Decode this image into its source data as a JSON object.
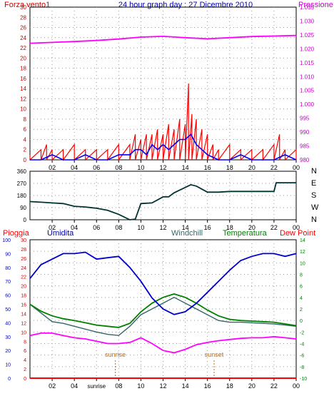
{
  "header": {
    "left_label": "Forza vento1",
    "title": "24 hour graph day : 27 Dicembre 2010",
    "right_label": "Pressione"
  },
  "colors": {
    "wind_gust": "#ff0000",
    "wind_avg": "#0000ff",
    "pressure": "#ff00ff",
    "direction": "#003333",
    "rain": "#ff0000",
    "humidity": "#0000cc",
    "windchill": "#336666",
    "temperature": "#008000",
    "dewpoint": "#ff00ff",
    "axis_left": "#cc0000",
    "axis_right": "#cc00cc",
    "axis_temp": "#008000",
    "grid": "#999999",
    "annotation": "#cc6600"
  },
  "chart_data": [
    {
      "type": "line",
      "x_ticks": [
        "02",
        "04",
        "06",
        "08",
        "10",
        "12",
        "14",
        "16",
        "18",
        "20",
        "22",
        "00"
      ],
      "y_left": {
        "label": "Forza vento1",
        "ticks": [
          "0",
          "2",
          "4",
          "6",
          "8",
          "10",
          "12",
          "14",
          "16",
          "18",
          "20",
          "22",
          "24",
          "26",
          "28",
          "30"
        ],
        "range": [
          0,
          30
        ]
      },
      "y_right": {
        "label": "Pressione",
        "ticks": [
          "980",
          "985",
          "990",
          "995",
          "1.000",
          "1.005",
          "1.010",
          "1.015",
          "1.020",
          "1.025",
          "1.030",
          "1.035"
        ],
        "range": [
          980,
          1035
        ]
      },
      "series": [
        {
          "name": "Forza vento1",
          "axis": "left",
          "x": [
            0,
            1,
            1.5,
            2,
            3,
            4,
            5,
            6,
            7,
            8,
            9,
            9.5,
            10,
            10.5,
            11,
            11.5,
            12,
            12.5,
            13,
            13.5,
            14,
            14.3,
            14.6,
            15,
            15.5,
            16,
            16.5,
            17,
            18,
            19,
            20,
            21,
            22,
            22.5,
            23,
            24
          ],
          "y": [
            1,
            2,
            3,
            2,
            2,
            3,
            2,
            2,
            2,
            3,
            3,
            5,
            4,
            5,
            5,
            6,
            5,
            7,
            6,
            8,
            7,
            15,
            9,
            8,
            6,
            5,
            3,
            2,
            3,
            2,
            2,
            2,
            3,
            5,
            2,
            2
          ]
        },
        {
          "x": [
            0,
            1,
            2,
            3,
            4,
            5,
            6,
            7,
            8,
            9,
            9.5,
            10,
            10.5,
            11,
            11.5,
            12,
            12.5,
            13,
            13.5,
            14,
            14.5,
            15,
            15.5,
            16,
            17,
            18,
            19,
            20,
            21,
            22,
            23,
            24
          ],
          "y": [
            0,
            0,
            1,
            0,
            0,
            1,
            0,
            0,
            1,
            1,
            2,
            2,
            1,
            3,
            2,
            3,
            2,
            3,
            4,
            4,
            5,
            3,
            2,
            1,
            0,
            0,
            1,
            0,
            0,
            0,
            1,
            0
          ]
        },
        {
          "name": "Pressione",
          "axis": "right",
          "x": [
            0,
            2,
            4,
            6,
            8,
            10,
            12,
            14,
            16,
            18,
            20,
            22,
            24
          ],
          "y": [
            1022,
            1022.3,
            1022.6,
            1023,
            1023.5,
            1024.2,
            1024.5,
            1024,
            1023.6,
            1024,
            1024.4,
            1024.6,
            1024.8
          ]
        }
      ]
    },
    {
      "type": "line",
      "x_ticks": [
        "02",
        "04",
        "06",
        "08",
        "10",
        "12",
        "14",
        "16",
        "18",
        "20",
        "22",
        "00"
      ],
      "y_left": {
        "ticks": [
          "0",
          "90",
          "180",
          "270",
          "360"
        ],
        "range": [
          0,
          360
        ]
      },
      "y_right": {
        "ticks": [
          "N",
          "W",
          "S",
          "E",
          "N"
        ]
      },
      "series": [
        {
          "x": [
            0,
            1,
            2,
            3,
            4,
            5,
            6,
            7,
            8,
            9,
            9.5,
            10,
            11,
            12,
            12.5,
            13,
            13.5,
            14,
            14.5,
            15,
            16,
            17,
            18,
            19,
            20,
            21,
            22,
            22.2,
            23,
            24
          ],
          "y": [
            135,
            130,
            125,
            120,
            100,
            95,
            85,
            70,
            40,
            0,
            5,
            120,
            125,
            170,
            170,
            200,
            220,
            240,
            260,
            250,
            205,
            205,
            210,
            210,
            210,
            210,
            210,
            275,
            275,
            275
          ]
        }
      ]
    },
    {
      "type": "line",
      "x_ticks": [
        "02",
        "04",
        "sunrise",
        "08",
        "10",
        "12",
        "14",
        "16",
        "18",
        "20",
        "22",
        "00"
      ],
      "header_labels": {
        "rain": "Pioggia",
        "humidity": "Umidita",
        "windchill": "Windchill",
        "temperature": "Temperatura",
        "dewpoint": "Dew Point"
      },
      "y_left_humidity": {
        "ticks": [
          "0",
          "10",
          "20",
          "30",
          "40",
          "50",
          "60",
          "70",
          "80",
          "90",
          "100"
        ],
        "range": [
          0,
          100
        ]
      },
      "y_left_rain": {
        "ticks": [
          "0",
          "2",
          "4",
          "6",
          "8",
          "10",
          "12",
          "14",
          "16",
          "18",
          "20",
          "22",
          "24",
          "26",
          "28",
          "30"
        ],
        "range": [
          0,
          30
        ]
      },
      "y_right_temp": {
        "ticks": [
          "-10",
          "-8",
          "-6",
          "-4",
          "-2",
          "0",
          "2",
          "4",
          "6",
          "8",
          "10",
          "12",
          "14"
        ],
        "range": [
          -10,
          14
        ]
      },
      "annotations": [
        {
          "text": "sunrise",
          "x": 7.7
        },
        {
          "text": "sunset",
          "x": 16.6
        }
      ],
      "series": [
        {
          "name": "Umidita",
          "axis": "humidity",
          "x": [
            0,
            1,
            2,
            3,
            4,
            5,
            6,
            7,
            8,
            9,
            10,
            11,
            12,
            13,
            14,
            15,
            16,
            17,
            18,
            19,
            20,
            21,
            22,
            23,
            24
          ],
          "y": [
            72,
            82,
            86,
            90,
            90,
            91,
            86,
            87,
            88,
            80,
            70,
            58,
            50,
            46,
            48,
            54,
            62,
            70,
            78,
            85,
            88,
            90,
            90,
            88,
            90
          ]
        },
        {
          "name": "Pioggia",
          "axis": "rain",
          "x": [
            0,
            24
          ],
          "y": [
            0,
            0
          ]
        },
        {
          "name": "Windchill",
          "axis": "temp",
          "x": [
            0,
            1,
            2,
            3,
            4,
            5,
            6,
            7,
            8,
            9,
            10,
            11,
            12,
            13,
            14,
            15,
            16,
            17,
            18,
            19,
            20,
            21,
            22,
            23,
            24
          ],
          "y": [
            2.8,
            1.3,
            -0.2,
            -0.5,
            -1,
            -1.5,
            -2,
            -2.4,
            -2.6,
            -1,
            1,
            2,
            3,
            4,
            3,
            2,
            1,
            0,
            -0.3,
            -0.3,
            -0.4,
            -0.5,
            -0.6,
            -0.8,
            -1
          ]
        },
        {
          "name": "Temperatura",
          "axis": "temp",
          "x": [
            0,
            1,
            2,
            3,
            4,
            5,
            6,
            7,
            8,
            9,
            10,
            11,
            12,
            13,
            14,
            15,
            16,
            17,
            18,
            19,
            20,
            21,
            22,
            23,
            24
          ],
          "y": [
            2.8,
            1.6,
            0.8,
            0.3,
            0,
            -0.4,
            -0.8,
            -1,
            -1.2,
            -0.5,
            1.5,
            3,
            4,
            4.6,
            4,
            3,
            1.8,
            0.8,
            0.2,
            0,
            -0.1,
            -0.2,
            -0.3,
            -0.6,
            -0.9
          ]
        },
        {
          "name": "Dew Point",
          "axis": "temp",
          "x": [
            0,
            1,
            2,
            3,
            4,
            5,
            6,
            7,
            8,
            9,
            10,
            11,
            12,
            13,
            14,
            15,
            16,
            17,
            18,
            19,
            20,
            21,
            22,
            23,
            24
          ],
          "y": [
            -2.6,
            -2.2,
            -2.2,
            -2.6,
            -3,
            -3.2,
            -3.6,
            -4,
            -4,
            -3.8,
            -3,
            -4,
            -5.2,
            -5.6,
            -5,
            -4.2,
            -3.8,
            -3.5,
            -3.3,
            -3.1,
            -3,
            -3,
            -2.8,
            -3,
            -3.2
          ]
        }
      ]
    }
  ]
}
